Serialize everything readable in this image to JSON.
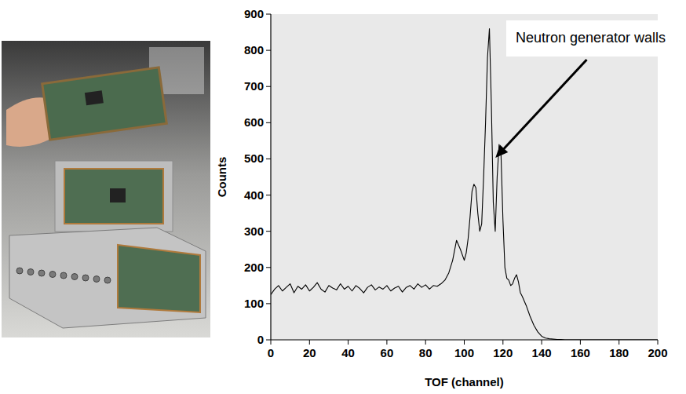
{
  "chart_data": {
    "type": "line",
    "x_label": "TOF (channel)",
    "y_label": "Counts",
    "color": "#000000",
    "xlim": [
      0,
      200
    ],
    "ylim": [
      0,
      900
    ],
    "xticks": [
      0,
      20,
      40,
      60,
      80,
      100,
      120,
      140,
      160,
      180,
      200
    ],
    "yticks": [
      0,
      100,
      200,
      300,
      400,
      500,
      600,
      700,
      800,
      900
    ],
    "x": [
      0,
      2,
      4,
      6,
      8,
      10,
      12,
      14,
      16,
      18,
      20,
      22,
      24,
      26,
      28,
      30,
      32,
      34,
      36,
      38,
      40,
      42,
      44,
      46,
      48,
      50,
      52,
      54,
      56,
      58,
      60,
      62,
      64,
      66,
      68,
      70,
      72,
      74,
      76,
      78,
      80,
      82,
      84,
      86,
      88,
      90,
      92,
      94,
      96,
      98,
      100,
      101,
      102,
      103,
      104,
      105,
      106,
      107,
      108,
      109,
      110,
      111,
      112,
      113,
      114,
      115,
      116,
      117,
      118,
      119,
      120,
      121,
      122,
      123,
      124,
      125,
      126,
      127,
      128,
      129,
      130,
      132,
      134,
      136,
      138,
      140,
      142,
      144,
      146,
      148,
      150,
      152,
      154,
      156,
      158,
      160,
      162,
      164,
      166,
      168,
      170,
      172,
      174,
      176,
      178,
      180,
      182,
      184,
      186,
      188,
      190,
      192,
      194,
      196,
      198,
      200
    ],
    "values": [
      125,
      140,
      150,
      135,
      145,
      155,
      130,
      148,
      140,
      152,
      135,
      145,
      158,
      140,
      132,
      150,
      143,
      138,
      155,
      140,
      148,
      135,
      150,
      142,
      130,
      145,
      152,
      138,
      146,
      140,
      150,
      135,
      143,
      148,
      132,
      145,
      150,
      140,
      155,
      145,
      152,
      140,
      150,
      148,
      155,
      165,
      185,
      220,
      275,
      250,
      220,
      240,
      280,
      340,
      410,
      430,
      420,
      350,
      300,
      320,
      450,
      600,
      780,
      860,
      650,
      380,
      300,
      450,
      540,
      510,
      330,
      200,
      170,
      165,
      150,
      155,
      170,
      180,
      160,
      130,
      120,
      95,
      65,
      40,
      22,
      10,
      5,
      3,
      2,
      1,
      1,
      0,
      0,
      0,
      0,
      0,
      0,
      0,
      0,
      0,
      0,
      0,
      0,
      0,
      0,
      0,
      0,
      0,
      0,
      0,
      0,
      0,
      0,
      0,
      0,
      0
    ],
    "annotations": [
      {
        "text": "Neutron generator walls",
        "x": 118,
        "y": 500
      }
    ]
  }
}
